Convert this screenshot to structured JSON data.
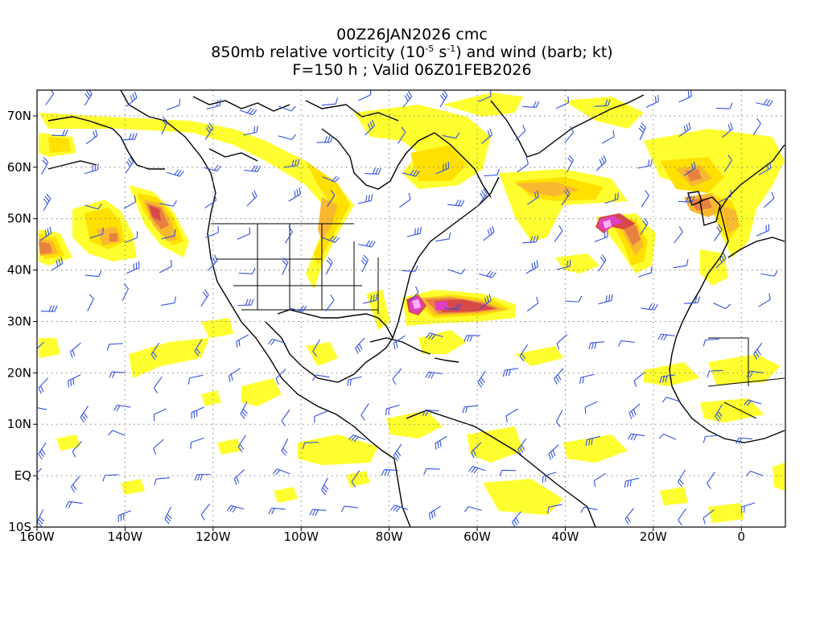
{
  "title": {
    "line1": "00Z26JAN2026 cmc",
    "line2_pre": "850mb relative vorticity (10",
    "line2_exp1": "-5",
    "line2_mid": " s",
    "line2_exp2": "-1",
    "line2_post": ") and wind (barb; kt)",
    "line3": "F=150 h ; Valid 06Z01FEB2026"
  },
  "axes": {
    "lat_labels": [
      "70N",
      "60N",
      "50N",
      "40N",
      "30N",
      "20N",
      "10N",
      "EQ",
      "10S"
    ],
    "lat_values": [
      70,
      60,
      50,
      40,
      30,
      20,
      10,
      0,
      -10
    ],
    "lon_labels": [
      "160W",
      "140W",
      "120W",
      "100W",
      "80W",
      "60W",
      "40W",
      "20W",
      "0"
    ],
    "lon_values": [
      -160,
      -140,
      -120,
      -100,
      -80,
      -60,
      -40,
      -20,
      0
    ],
    "lon_range": [
      -160,
      10
    ],
    "lat_range": [
      -10,
      75
    ],
    "grid": "dotted"
  },
  "colors": {
    "light_yellow": "#ffff30",
    "yellow": "#ffe000",
    "orange": "#f8b830",
    "dark_orange": "#e88040",
    "red": "#d84848",
    "magenta": "#e040c0",
    "light_pink": "#ffb0ff",
    "barb": "#3050e0",
    "coast": "#000000",
    "grid": "#808080"
  },
  "vorticity_features": [
    {
      "lon": -74,
      "lat": 33,
      "level": 5
    },
    {
      "lon": -70,
      "lat": 32,
      "level": 4
    },
    {
      "lon": -63,
      "lat": 32,
      "level": 3
    },
    {
      "lon": -32,
      "lat": 48,
      "level": 5
    },
    {
      "lon": -25,
      "lat": 45,
      "level": 3
    },
    {
      "lon": -158,
      "lat": 45,
      "level": 3
    },
    {
      "lon": -130,
      "lat": 52,
      "level": 3
    },
    {
      "lon": -140,
      "lat": 47,
      "level": 2
    },
    {
      "lon": -12,
      "lat": 58,
      "level": 2
    },
    {
      "lon": -12,
      "lat": 52,
      "level": 2
    },
    {
      "lon": -8,
      "lat": 49,
      "level": 2
    }
  ]
}
